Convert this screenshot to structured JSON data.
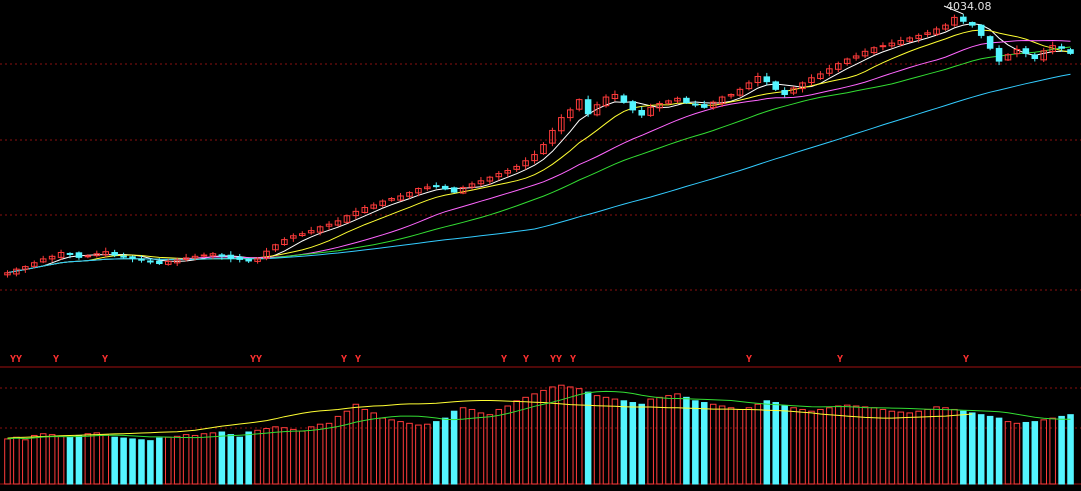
{
  "chart_data": [
    {
      "type": "candlestick",
      "panel": "price",
      "annotation": {
        "high_label": "4034.08"
      },
      "colors": {
        "up": "#ff3b3b",
        "down": "#54f5ff",
        "ma5": "#ffffff",
        "ma10": "#ffff33",
        "ma20": "#ff66ff",
        "ma30": "#33dd33",
        "ma60": "#33ccff",
        "grid": "#8a1010"
      },
      "closes": [
        3006,
        3020,
        3030,
        3045,
        3060,
        3070,
        3085,
        3078,
        3066,
        3072,
        3080,
        3088,
        3075,
        3070,
        3062,
        3055,
        3048,
        3042,
        3050,
        3056,
        3064,
        3070,
        3075,
        3080,
        3070,
        3062,
        3058,
        3052,
        3060,
        3090,
        3115,
        3135,
        3150,
        3158,
        3170,
        3185,
        3195,
        3208,
        3228,
        3245,
        3260,
        3270,
        3285,
        3295,
        3305,
        3318,
        3334,
        3340,
        3345,
        3332,
        3320,
        3338,
        3352,
        3364,
        3378,
        3392,
        3404,
        3420,
        3442,
        3466,
        3505,
        3560,
        3610,
        3640,
        3680,
        3625,
        3660,
        3690,
        3700,
        3670,
        3640,
        3620,
        3650,
        3665,
        3675,
        3685,
        3668,
        3660,
        3650,
        3670,
        3690,
        3700,
        3720,
        3745,
        3770,
        3750,
        3720,
        3700,
        3725,
        3745,
        3765,
        3780,
        3800,
        3820,
        3838,
        3850,
        3868,
        3882,
        3890,
        3900,
        3910,
        3920,
        3930,
        3940,
        3955,
        3970,
        4000,
        3985,
        3970,
        3930,
        3880,
        3830,
        3855,
        3875,
        3860,
        3840,
        3870,
        3890,
        3880,
        3860
      ],
      "volumes": [
        260,
        270,
        255,
        280,
        290,
        285,
        275,
        270,
        280,
        290,
        295,
        285,
        270,
        265,
        260,
        255,
        250,
        265,
        270,
        275,
        285,
        280,
        290,
        295,
        300,
        285,
        270,
        300,
        310,
        320,
        330,
        325,
        315,
        305,
        330,
        345,
        350,
        390,
        420,
        460,
        430,
        410,
        380,
        370,
        360,
        350,
        340,
        345,
        360,
        380,
        420,
        440,
        430,
        410,
        400,
        430,
        450,
        480,
        500,
        520,
        540,
        560,
        570,
        560,
        550,
        530,
        510,
        500,
        490,
        480,
        470,
        460,
        490,
        500,
        510,
        520,
        500,
        480,
        470,
        460,
        450,
        440,
        430,
        440,
        460,
        480,
        470,
        450,
        440,
        430,
        420,
        430,
        440,
        450,
        455,
        450,
        445,
        440,
        430,
        420,
        415,
        410,
        420,
        430,
        445,
        440,
        430,
        420,
        410,
        400,
        390,
        380,
        360,
        350,
        355,
        360,
        370,
        380,
        390,
        400
      ],
      "vol_ma": [
        265,
        268,
        270,
        272,
        274,
        276,
        278,
        280,
        281,
        283,
        285,
        287,
        289,
        290,
        292,
        294,
        296,
        298,
        300,
        302,
        306,
        310,
        318,
        326,
        334,
        340,
        346,
        352,
        358,
        366,
        376,
        388,
        398,
        408,
        416,
        422,
        426,
        430,
        436,
        442,
        446,
        450,
        452,
        456,
        460,
        462,
        462,
        464,
        466,
        470,
        474,
        478,
        480,
        482,
        482,
        480,
        478,
        476,
        474,
        472,
        470,
        466,
        462,
        458,
        456,
        454,
        452,
        450,
        448,
        446,
        444,
        444,
        444,
        442,
        440,
        440,
        438,
        436,
        434,
        432,
        432,
        432,
        430,
        430,
        428,
        426,
        424,
        422,
        418,
        414,
        410,
        404,
        400,
        396,
        392,
        388,
        384,
        382,
        380,
        380,
        382,
        384,
        386,
        388,
        390,
        392,
        396,
        400,
        404
      ]
    }
  ],
  "signal_markers": [
    "YY",
    "Y",
    "Y",
    "YY",
    "Y",
    "Y",
    "Y",
    "Y",
    "YY",
    "Y",
    "Y",
    "Y",
    "Y"
  ]
}
